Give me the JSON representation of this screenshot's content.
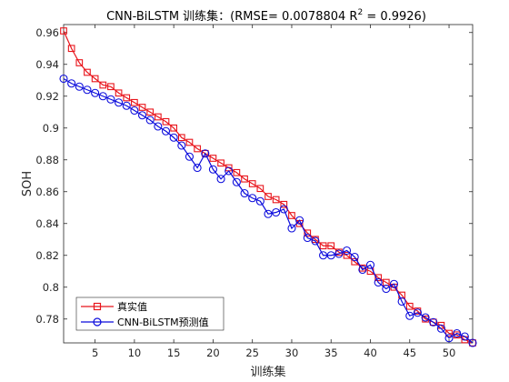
{
  "chart_data": {
    "type": "line",
    "title": "CNN-BiLSTM 训练集：(RMSE= 0.0078804 R",
    "title_sup": "2",
    "title_tail": " = 0.9926)",
    "xlabel": "训练集",
    "ylabel": "SOH",
    "xlim": [
      1,
      53
    ],
    "ylim": [
      0.765,
      0.965
    ],
    "xticks": [
      5,
      10,
      15,
      20,
      25,
      30,
      35,
      40,
      45,
      50
    ],
    "yticks": [
      0.78,
      0.8,
      0.82,
      0.84,
      0.86,
      0.88,
      0.9,
      0.92,
      0.94,
      0.96
    ],
    "ytick_labels": [
      "0.78",
      "0.8",
      "0.82",
      "0.84",
      "0.86",
      "0.88",
      "0.9",
      "0.92",
      "0.94",
      "0.96"
    ],
    "grid": false,
    "legend_position": "bottom-left",
    "x": [
      1,
      2,
      3,
      4,
      5,
      6,
      7,
      8,
      9,
      10,
      11,
      12,
      13,
      14,
      15,
      16,
      17,
      18,
      19,
      20,
      21,
      22,
      23,
      24,
      25,
      26,
      27,
      28,
      29,
      30,
      31,
      32,
      33,
      34,
      35,
      36,
      37,
      38,
      39,
      40,
      41,
      42,
      43,
      44,
      45,
      46,
      47,
      48,
      49,
      50,
      51,
      52,
      53
    ],
    "series": [
      {
        "name": "真实值",
        "color": "#e8141b",
        "marker": "square",
        "values": [
          0.961,
          0.95,
          0.941,
          0.935,
          0.931,
          0.927,
          0.926,
          0.922,
          0.919,
          0.916,
          0.913,
          0.91,
          0.907,
          0.904,
          0.9,
          0.894,
          0.891,
          0.887,
          0.884,
          0.881,
          0.878,
          0.875,
          0.872,
          0.868,
          0.865,
          0.862,
          0.857,
          0.855,
          0.852,
          0.845,
          0.84,
          0.834,
          0.83,
          0.826,
          0.826,
          0.822,
          0.82,
          0.816,
          0.812,
          0.81,
          0.806,
          0.803,
          0.8,
          0.795,
          0.788,
          0.785,
          0.78,
          0.778,
          0.776,
          0.771,
          0.77,
          0.767,
          0.765
        ]
      },
      {
        "name": "CNN-BiLSTM预测值",
        "color": "#0b0bdc",
        "marker": "circle",
        "values": [
          0.931,
          0.928,
          0.926,
          0.924,
          0.922,
          0.92,
          0.918,
          0.916,
          0.914,
          0.911,
          0.908,
          0.905,
          0.901,
          0.898,
          0.894,
          0.889,
          0.882,
          0.875,
          0.884,
          0.874,
          0.868,
          0.873,
          0.866,
          0.859,
          0.856,
          0.854,
          0.846,
          0.847,
          0.849,
          0.837,
          0.842,
          0.831,
          0.829,
          0.82,
          0.82,
          0.821,
          0.823,
          0.819,
          0.811,
          0.814,
          0.803,
          0.799,
          0.802,
          0.791,
          0.782,
          0.784,
          0.781,
          0.778,
          0.774,
          0.768,
          0.771,
          0.769,
          0.765
        ]
      }
    ]
  }
}
